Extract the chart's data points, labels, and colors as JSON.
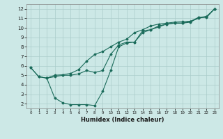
{
  "xlabel": "Humidex (Indice chaleur)",
  "bg_color": "#cce8e6",
  "grid_color": "#aaccca",
  "line_color": "#1a6b5a",
  "xlim": [
    -0.5,
    23.5
  ],
  "ylim": [
    1.5,
    12.5
  ],
  "xticks": [
    0,
    1,
    2,
    3,
    4,
    5,
    6,
    7,
    8,
    9,
    10,
    11,
    12,
    13,
    14,
    15,
    16,
    17,
    18,
    19,
    20,
    21,
    22,
    23
  ],
  "yticks": [
    2,
    3,
    4,
    5,
    6,
    7,
    8,
    9,
    10,
    11,
    12
  ],
  "line1_x": [
    0,
    1,
    2,
    3,
    4,
    5,
    6,
    7,
    8,
    9,
    10,
    11,
    12,
    13,
    14,
    15,
    16,
    17,
    18,
    19,
    20,
    21,
    22,
    23
  ],
  "line1_y": [
    5.8,
    4.85,
    4.7,
    4.85,
    5.0,
    5.0,
    5.15,
    5.5,
    5.3,
    5.5,
    7.2,
    8.2,
    8.5,
    8.5,
    9.7,
    9.8,
    10.1,
    10.4,
    10.5,
    10.5,
    10.6,
    11.1,
    11.1,
    12.0
  ],
  "line2_x": [
    0,
    1,
    2,
    3,
    4,
    5,
    6,
    7,
    8,
    9,
    10,
    11,
    12,
    13,
    14,
    15,
    16,
    17,
    18,
    19,
    20,
    21,
    22,
    23
  ],
  "line2_y": [
    5.8,
    4.85,
    4.7,
    5.0,
    5.05,
    5.2,
    5.6,
    6.5,
    7.2,
    7.5,
    8.0,
    8.5,
    8.8,
    9.5,
    9.8,
    10.2,
    10.4,
    10.5,
    10.6,
    10.65,
    10.7,
    11.1,
    11.2,
    12.0
  ],
  "line3_x": [
    2,
    3,
    4,
    5,
    6,
    7,
    8,
    9,
    10,
    11,
    12,
    13,
    14,
    15,
    16,
    17,
    18,
    19,
    20,
    21,
    22,
    23
  ],
  "line3_y": [
    4.7,
    2.6,
    2.1,
    1.9,
    1.9,
    1.9,
    1.8,
    3.3,
    5.5,
    8.0,
    8.4,
    8.5,
    9.5,
    9.8,
    10.2,
    10.4,
    10.5,
    10.5,
    10.7,
    11.0,
    11.2,
    12.0
  ]
}
